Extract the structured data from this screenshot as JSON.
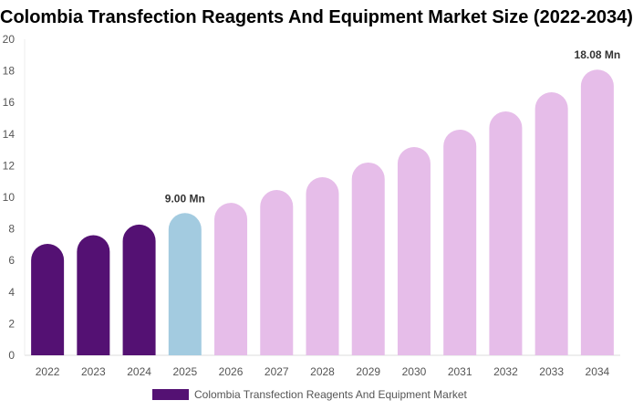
{
  "chart_data": {
    "type": "bar",
    "title": "Colombia Transfection Reagents And Equipment Market Size (2022-2034)",
    "categories": [
      "2022",
      "2023",
      "2024",
      "2025",
      "2026",
      "2027",
      "2028",
      "2029",
      "2030",
      "2031",
      "2032",
      "2033",
      "2034"
    ],
    "series": [
      {
        "name": "Colombia Transfection Reagents And Equipment Market",
        "values": [
          7.05,
          7.6,
          8.27,
          9.0,
          9.65,
          10.46,
          11.27,
          12.2,
          13.18,
          14.28,
          15.43,
          16.65,
          18.08
        ]
      }
    ],
    "bar_colors": [
      "#541173",
      "#541173",
      "#541173",
      "#a3cbe0",
      "#e6bde9",
      "#e6bde9",
      "#e6bde9",
      "#e6bde9",
      "#e6bde9",
      "#e6bde9",
      "#e6bde9",
      "#e6bde9",
      "#e6bde9"
    ],
    "annotations": [
      {
        "category": "2025",
        "text": "9.00 Mn"
      },
      {
        "category": "2034",
        "text": "18.08 Mn"
      }
    ],
    "yticks": [
      0,
      2,
      4,
      6,
      8,
      10,
      12,
      14,
      16,
      18,
      20
    ],
    "ylim": [
      0,
      20
    ],
    "grid": false,
    "legend_placement": "bottom",
    "legend_color": "#541173"
  }
}
